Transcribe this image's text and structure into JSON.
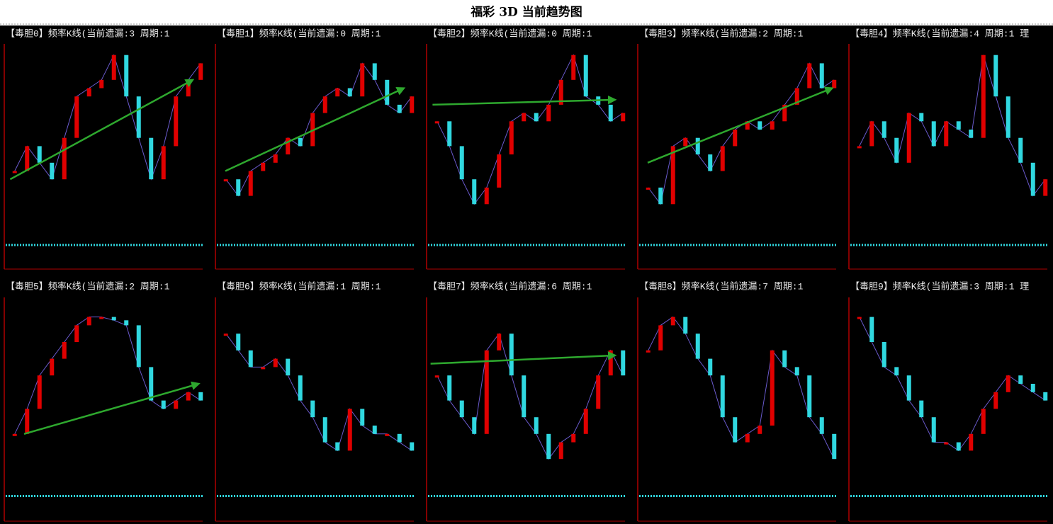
{
  "title": "福彩 3D 当前趋势图",
  "chart_data": [
    {
      "type": "kline",
      "label": "【毒胆0】频率K线(当前遗漏:3 周期:1",
      "values": [
        25,
        40,
        30,
        20,
        45,
        70,
        75,
        80,
        95,
        70,
        45,
        20,
        40,
        70,
        80,
        90
      ]
    },
    {
      "type": "kline",
      "label": "【毒胆1】频率K线(当前遗漏:0 周期:1",
      "values": [
        20,
        10,
        25,
        30,
        35,
        45,
        40,
        60,
        70,
        75,
        70,
        90,
        80,
        65,
        60,
        70
      ]
    },
    {
      "type": "kline",
      "label": "【毒胆2】频率K线(当前遗漏:0 周期:1",
      "values": [
        55,
        40,
        20,
        5,
        15,
        35,
        55,
        60,
        55,
        65,
        80,
        95,
        70,
        65,
        55,
        60
      ]
    },
    {
      "type": "kline",
      "label": "【毒胆3】频率K线(当前遗漏:2 周期:1",
      "values": [
        15,
        5,
        40,
        45,
        35,
        25,
        40,
        50,
        55,
        50,
        55,
        65,
        75,
        90,
        75,
        80
      ]
    },
    {
      "type": "kline",
      "label": "【毒胆4】频率K线(当前遗漏:4 周期:1 理",
      "values": [
        40,
        55,
        45,
        30,
        60,
        55,
        40,
        55,
        50,
        45,
        95,
        70,
        45,
        30,
        10,
        20
      ]
    },
    {
      "type": "kline",
      "label": "【毒胆5】频率K线(当前遗漏:2 周期:1",
      "values": [
        20,
        35,
        55,
        65,
        75,
        85,
        90,
        90,
        88,
        85,
        60,
        40,
        35,
        40,
        45,
        40
      ]
    },
    {
      "type": "kline",
      "label": "【毒胆6】频率K线(当前遗漏:1 周期:1",
      "values": [
        80,
        70,
        60,
        60,
        65,
        55,
        40,
        30,
        15,
        10,
        35,
        25,
        20,
        20,
        15,
        10
      ]
    },
    {
      "type": "kline",
      "label": "【毒胆7】频率K线(当前遗漏:6 周期:1",
      "values": [
        55,
        40,
        30,
        20,
        70,
        80,
        55,
        30,
        20,
        5,
        15,
        20,
        35,
        55,
        70,
        55
      ]
    },
    {
      "type": "kline",
      "label": "【毒胆8】频率K线(当前遗漏:7 周期:1",
      "values": [
        70,
        85,
        90,
        80,
        65,
        55,
        30,
        15,
        20,
        25,
        70,
        60,
        55,
        30,
        20,
        5
      ]
    },
    {
      "type": "kline",
      "label": "【毒胆9】频率K线(当前遗漏:3 周期:1 理",
      "values": [
        90,
        75,
        60,
        55,
        40,
        30,
        15,
        15,
        10,
        20,
        35,
        45,
        55,
        50,
        45,
        40
      ]
    }
  ]
}
